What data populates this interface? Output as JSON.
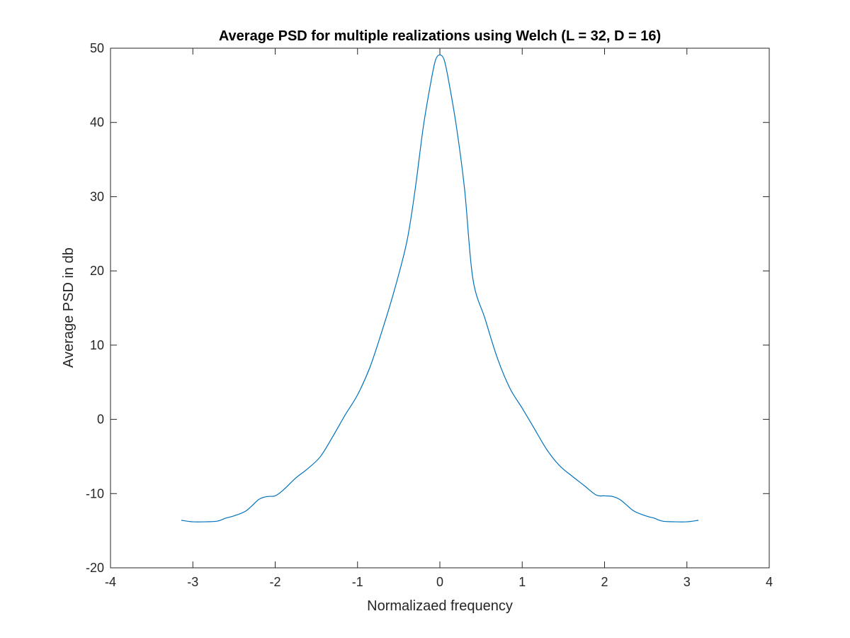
{
  "chart_data": {
    "type": "line",
    "title": "Average PSD for multiple realizations using Welch (L = 32, D = 16)",
    "xlabel": "Normalizaed frequency",
    "ylabel": "Average PSD in db",
    "xlim": [
      -4,
      4
    ],
    "ylim": [
      -20,
      50
    ],
    "xticks": [
      -4,
      -3,
      -2,
      -1,
      0,
      1,
      2,
      3,
      4
    ],
    "yticks": [
      -20,
      -10,
      0,
      10,
      20,
      30,
      40,
      50
    ],
    "grid": false,
    "box": true,
    "series": [
      {
        "color": "#0072BD",
        "x": [
          -3.14,
          -3.0,
          -2.85,
          -2.7,
          -2.6,
          -2.5,
          -2.35,
          -2.2,
          -2.1,
          -2.0,
          -1.9,
          -1.75,
          -1.6,
          -1.45,
          -1.3,
          -1.15,
          -1.0,
          -0.85,
          -0.7,
          -0.55,
          -0.4,
          -0.3,
          -0.2,
          -0.1,
          -0.05,
          0.0,
          0.05,
          0.1,
          0.2,
          0.3,
          0.4,
          0.55,
          0.7,
          0.85,
          1.0,
          1.15,
          1.3,
          1.45,
          1.6,
          1.75,
          1.9,
          2.0,
          2.1,
          2.2,
          2.35,
          2.5,
          2.6,
          2.7,
          2.85,
          3.0,
          3.14
        ],
        "y": [
          -13.6,
          -13.8,
          -13.8,
          -13.7,
          -13.3,
          -13.0,
          -12.3,
          -10.8,
          -10.4,
          -10.3,
          -9.5,
          -7.9,
          -6.6,
          -5.0,
          -2.3,
          0.6,
          3.3,
          7.0,
          12.0,
          17.5,
          24.0,
          31.0,
          39.5,
          46.0,
          48.5,
          49.1,
          48.5,
          46.0,
          39.5,
          31.0,
          19.0,
          13.5,
          8.2,
          4.2,
          1.5,
          -1.3,
          -4.1,
          -6.2,
          -7.6,
          -8.9,
          -10.2,
          -10.3,
          -10.4,
          -10.9,
          -12.3,
          -13.0,
          -13.3,
          -13.7,
          -13.8,
          -13.8,
          -13.6
        ]
      }
    ]
  }
}
